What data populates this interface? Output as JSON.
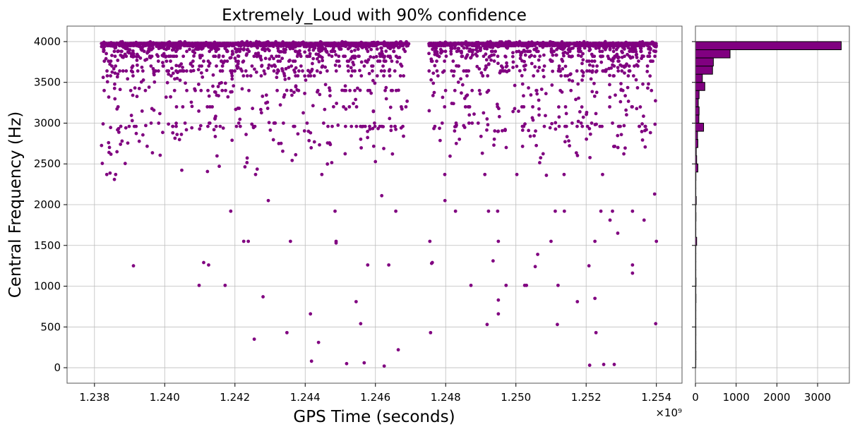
{
  "chart_data": [
    {
      "type": "scatter",
      "title": "Extremely_Loud with 90% confidence",
      "xlabel": "GPS Time (seconds)",
      "ylabel": "Central Frequency (Hz)",
      "x_offset_label": "×10⁹",
      "xlim": [
        1.23722,
        1.25473
      ],
      "ylim": [
        -190,
        4190
      ],
      "x_ticks": [
        1.238,
        1.24,
        1.242,
        1.244,
        1.246,
        1.248,
        1.25,
        1.252,
        1.254
      ],
      "x_tick_labels": [
        "1.238",
        "1.240",
        "1.242",
        "1.244",
        "1.246",
        "1.248",
        "1.250",
        "1.252",
        "1.254"
      ],
      "y_ticks": [
        0,
        500,
        1000,
        1500,
        2000,
        2500,
        3000,
        3500,
        4000
      ],
      "y_tick_labels": [
        "0",
        "500",
        "1000",
        "1500",
        "2000",
        "2500",
        "3000",
        "3500",
        "4000"
      ],
      "grid": true,
      "color": "#800080",
      "points": [
        [
          1.23911,
          1250
        ],
        [
          1.24098,
          1010
        ],
        [
          1.24111,
          1290
        ],
        [
          1.24125,
          1260
        ],
        [
          1.24172,
          1010
        ],
        [
          1.24188,
          1920
        ],
        [
          1.24225,
          1550
        ],
        [
          1.24238,
          1550
        ],
        [
          1.24255,
          350
        ],
        [
          1.2428,
          870
        ],
        [
          1.24295,
          2050
        ],
        [
          1.24348,
          430
        ],
        [
          1.24358,
          1550
        ],
        [
          1.24415,
          660
        ],
        [
          1.24418,
          80
        ],
        [
          1.24438,
          310
        ],
        [
          1.24485,
          1920
        ],
        [
          1.24488,
          1550
        ],
        [
          1.24488,
          1530
        ],
        [
          1.24518,
          50
        ],
        [
          1.24545,
          810
        ],
        [
          1.24558,
          540
        ],
        [
          1.24568,
          60
        ],
        [
          1.24578,
          1260
        ],
        [
          1.24625,
          20
        ],
        [
          1.24618,
          2110
        ],
        [
          1.24658,
          1920
        ],
        [
          1.24638,
          1260
        ],
        [
          1.24665,
          220
        ],
        [
          1.24757,
          430
        ],
        [
          1.24755,
          1550
        ],
        [
          1.2476,
          1280
        ],
        [
          1.24762,
          1290
        ],
        [
          1.24798,
          2050
        ],
        [
          1.24828,
          1920
        ],
        [
          1.24872,
          1010
        ],
        [
          1.24918,
          530
        ],
        [
          1.24922,
          1920
        ],
        [
          1.24935,
          1310
        ],
        [
          1.24948,
          1920
        ],
        [
          1.2495,
          1550
        ],
        [
          1.2495,
          830
        ],
        [
          1.2495,
          660
        ],
        [
          1.24972,
          1010
        ],
        [
          1.25025,
          1010
        ],
        [
          1.2503,
          1010
        ],
        [
          1.25055,
          1240
        ],
        [
          1.25062,
          1390
        ],
        [
          1.251,
          1550
        ],
        [
          1.25118,
          530
        ],
        [
          1.2512,
          1010
        ],
        [
          1.25112,
          1920
        ],
        [
          1.25138,
          1920
        ],
        [
          1.25175,
          810
        ],
        [
          1.25208,
          1250
        ],
        [
          1.2521,
          30
        ],
        [
          1.25225,
          850
        ],
        [
          1.25228,
          430
        ],
        [
          1.25225,
          1550
        ],
        [
          1.25242,
          1920
        ],
        [
          1.2525,
          40
        ],
        [
          1.25268,
          1810
        ],
        [
          1.25275,
          1920
        ],
        [
          1.2528,
          40
        ],
        [
          1.2529,
          1650
        ],
        [
          1.25332,
          1260
        ],
        [
          1.25332,
          1160
        ],
        [
          1.25332,
          1920
        ],
        [
          1.25365,
          1810
        ],
        [
          1.25395,
          2130
        ],
        [
          1.25398,
          540
        ],
        [
          1.254,
          1550
        ]
      ]
    },
    {
      "type": "bar",
      "orientation": "horizontal",
      "title": "",
      "xlim": [
        0,
        3780
      ],
      "x_ticks": [
        0,
        1000,
        2000,
        3000
      ],
      "x_tick_labels": [
        "0",
        "1000",
        "2000",
        "3000"
      ],
      "bin_edges": [
        0,
        100,
        200,
        300,
        400,
        500,
        600,
        700,
        800,
        900,
        1000,
        1100,
        1200,
        1300,
        1400,
        1500,
        1600,
        1700,
        1800,
        1900,
        2000,
        2100,
        2200,
        2300,
        2400,
        2500,
        2600,
        2700,
        2800,
        2900,
        3000,
        3100,
        3200,
        3300,
        3400,
        3500,
        3600,
        3700,
        3800,
        3900,
        4000
      ],
      "values": [
        10,
        12,
        6,
        5,
        11,
        10,
        8,
        6,
        13,
        6,
        14,
        8,
        8,
        5,
        7,
        30,
        5,
        6,
        13,
        8,
        20,
        3,
        2,
        12,
        60,
        30,
        20,
        60,
        50,
        200,
        85,
        90,
        70,
        90,
        230,
        170,
        420,
        440,
        850,
        3580
      ],
      "color": "#800080",
      "edgecolor": "#000000"
    }
  ]
}
